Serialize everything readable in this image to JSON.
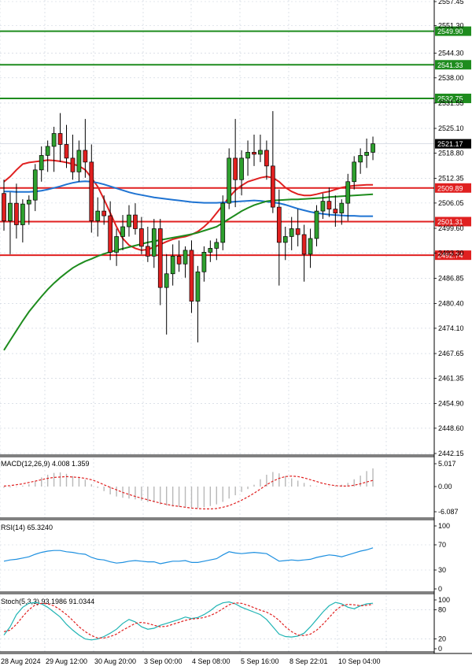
{
  "chart_data": {
    "type": "candlestick",
    "price_axis": {
      "ticks": [
        "2557.45",
        "2551.30",
        "2544.30",
        "2538.00",
        "2531.55",
        "2525.10",
        "2518.80",
        "2512.35",
        "2506.05",
        "2499.60",
        "2493.30",
        "2486.85",
        "2480.40",
        "2474.10",
        "2467.65",
        "2461.35",
        "2454.90",
        "2448.60",
        "2442.15"
      ],
      "range": [
        2442.15,
        2557.45
      ]
    },
    "time_axis": {
      "ticks": [
        "28 Aug 2024",
        "29 Aug 12:00",
        "30 Aug 20:00",
        "3 Sep 00:00",
        "4 Sep 08:00",
        "5 Sep 16:00",
        "8 Sep 22:01",
        "10 Sep 04:00"
      ]
    },
    "levels": [
      {
        "label": "2549.90",
        "value": 2549.9,
        "color": "#1e8c1e",
        "kind": "resistance"
      },
      {
        "label": "2541.33",
        "value": 2541.33,
        "color": "#1e8c1e",
        "kind": "resistance"
      },
      {
        "label": "2532.75",
        "value": 2532.75,
        "color": "#1e8c1e",
        "kind": "resistance"
      },
      {
        "label": "2509.89",
        "value": 2509.89,
        "color": "#e02020",
        "kind": "support"
      },
      {
        "label": "2501.31",
        "value": 2501.31,
        "color": "#e02020",
        "kind": "support"
      },
      {
        "label": "2492.74",
        "value": 2492.74,
        "color": "#e02020",
        "kind": "support"
      }
    ],
    "current_price": {
      "label": "2521.17",
      "value": 2521.17
    },
    "candles": [
      [
        2508.5,
        2512.0,
        2499.0,
        2501.5
      ],
      [
        2501.5,
        2508.8,
        2493.0,
        2506.0
      ],
      [
        2506.0,
        2511.0,
        2497.0,
        2500.5
      ],
      [
        2500.5,
        2507.0,
        2496.0,
        2505.8
      ],
      [
        2505.8,
        2508.0,
        2500.5,
        2506.8
      ],
      [
        2506.8,
        2516.0,
        2504.0,
        2514.5
      ],
      [
        2514.5,
        2520.5,
        2511.5,
        2518.2
      ],
      [
        2518.2,
        2522.0,
        2514.0,
        2520.5
      ],
      [
        2520.5,
        2525.5,
        2514.0,
        2523.8
      ],
      [
        2523.8,
        2529.0,
        2516.5,
        2521.0
      ],
      [
        2521.0,
        2526.0,
        2515.0,
        2517.5
      ],
      [
        2517.5,
        2523.5,
        2512.0,
        2514.0
      ],
      [
        2514.0,
        2522.0,
        2511.5,
        2519.5
      ],
      [
        2519.5,
        2527.5,
        2512.5,
        2516.5
      ],
      [
        2516.5,
        2521.0,
        2498.5,
        2501.5
      ],
      [
        2501.5,
        2507.5,
        2497.5,
        2504.0
      ],
      [
        2504.0,
        2508.0,
        2500.5,
        2502.8
      ],
      [
        2502.8,
        2506.5,
        2491.5,
        2493.5
      ],
      [
        2493.5,
        2499.5,
        2490.0,
        2497.5
      ],
      [
        2497.5,
        2503.0,
        2494.0,
        2500.0
      ],
      [
        2500.0,
        2505.5,
        2497.5,
        2503.0
      ],
      [
        2503.0,
        2506.0,
        2498.0,
        2499.5
      ],
      [
        2499.5,
        2502.5,
        2493.0,
        2495.0
      ],
      [
        2495.0,
        2500.0,
        2491.0,
        2492.5
      ],
      [
        2492.5,
        2502.0,
        2489.5,
        2499.5
      ],
      [
        2499.5,
        2502.0,
        2480.0,
        2484.5
      ],
      [
        2484.5,
        2493.0,
        2472.5,
        2488.0
      ],
      [
        2488.0,
        2495.5,
        2485.0,
        2492.5
      ],
      [
        2492.5,
        2496.5,
        2488.5,
        2490.5
      ],
      [
        2490.5,
        2495.0,
        2487.0,
        2494.0
      ],
      [
        2494.0,
        2496.5,
        2478.0,
        2481.0
      ],
      [
        2481.0,
        2490.0,
        2470.5,
        2488.5
      ],
      [
        2488.5,
        2495.0,
        2486.0,
        2493.5
      ],
      [
        2493.5,
        2496.5,
        2491.0,
        2494.5
      ],
      [
        2494.5,
        2497.0,
        2491.5,
        2496.0
      ],
      [
        2496.0,
        2508.0,
        2494.0,
        2506.0
      ],
      [
        2506.0,
        2520.0,
        2504.5,
        2517.5
      ],
      [
        2517.5,
        2527.5,
        2505.0,
        2512.0
      ],
      [
        2512.0,
        2519.5,
        2508.0,
        2517.5
      ],
      [
        2517.5,
        2522.0,
        2513.0,
        2519.0
      ],
      [
        2519.0,
        2523.5,
        2515.5,
        2518.5
      ],
      [
        2518.5,
        2523.5,
        2516.5,
        2519.5
      ],
      [
        2519.5,
        2522.0,
        2512.0,
        2515.5
      ],
      [
        2515.5,
        2529.5,
        2503.5,
        2505.0
      ],
      [
        2505.0,
        2509.5,
        2485.0,
        2496.0
      ],
      [
        2496.0,
        2500.0,
        2491.5,
        2497.5
      ],
      [
        2497.5,
        2502.5,
        2494.0,
        2499.5
      ],
      [
        2499.5,
        2504.5,
        2495.0,
        2498.0
      ],
      [
        2498.0,
        2500.5,
        2486.0,
        2493.0
      ],
      [
        2493.0,
        2499.5,
        2489.5,
        2497.0
      ],
      [
        2497.0,
        2505.5,
        2495.0,
        2504.0
      ],
      [
        2504.0,
        2508.5,
        2502.0,
        2506.5
      ],
      [
        2506.5,
        2510.0,
        2502.5,
        2504.5
      ],
      [
        2504.5,
        2508.0,
        2500.0,
        2503.5
      ],
      [
        2503.5,
        2507.0,
        2500.5,
        2506.0
      ],
      [
        2506.0,
        2513.5,
        2501.5,
        2511.5
      ],
      [
        2511.5,
        2518.0,
        2509.5,
        2516.5
      ],
      [
        2516.5,
        2520.0,
        2513.5,
        2518.2
      ],
      [
        2518.2,
        2522.5,
        2515.0,
        2519.0
      ],
      [
        2519.0,
        2523.0,
        2517.0,
        2521.17
      ]
    ],
    "moving_averages": [
      {
        "color": "#e02020",
        "values": [
          2511.5,
          2512.8,
          2514.5,
          2516.0,
          2516.4,
          2516.6,
          2516.8,
          2517.0,
          2516.9,
          2516.7,
          2516.4,
          2516.0,
          2515.5,
          2514.5,
          2512.5,
          2510.2,
          2507.0,
          2503.5,
          2500.0,
          2497.0,
          2495.3,
          2494.5,
          2494.0,
          2494.2,
          2494.8,
          2495.5,
          2496.2,
          2496.8,
          2497.2,
          2497.5,
          2498.0,
          2498.8,
          2500.0,
          2501.5,
          2503.5,
          2505.5,
          2507.5,
          2509.3,
          2510.5,
          2511.5,
          2512.0,
          2512.5,
          2512.8,
          2512.5,
          2511.5,
          2510.0,
          2509.0,
          2508.3,
          2508.0,
          2508.0,
          2508.3,
          2508.7,
          2509.0,
          2509.5,
          2510.0,
          2510.3,
          2510.5,
          2510.6,
          2510.7,
          2510.7
        ]
      },
      {
        "color": "#1e73d2",
        "values": [
          2509.0,
          2509.0,
          2508.9,
          2508.9,
          2508.9,
          2509.0,
          2509.2,
          2509.5,
          2509.9,
          2510.3,
          2510.8,
          2511.2,
          2511.5,
          2511.6,
          2511.5,
          2511.2,
          2510.8,
          2510.3,
          2509.8,
          2509.3,
          2508.8,
          2508.4,
          2508.1,
          2507.8,
          2507.5,
          2507.3,
          2507.1,
          2506.9,
          2506.7,
          2506.5,
          2506.3,
          2506.2,
          2506.1,
          2506.1,
          2506.1,
          2506.2,
          2506.3,
          2506.4,
          2506.5,
          2506.6,
          2506.7,
          2506.6,
          2506.4,
          2506.2,
          2506.0,
          2505.6,
          2505.1,
          2504.6,
          2504.2,
          2503.8,
          2503.5,
          2503.3,
          2503.1,
          2503.0,
          2502.9,
          2502.8,
          2502.8,
          2502.7,
          2502.7,
          2502.7
        ]
      },
      {
        "color": "#1e8c1e",
        "values": [
          2468.5,
          2471.0,
          2473.5,
          2476.0,
          2478.3,
          2480.3,
          2482.2,
          2484.0,
          2485.6,
          2487.0,
          2488.3,
          2489.5,
          2490.4,
          2491.2,
          2491.8,
          2492.5,
          2493.1,
          2493.6,
          2494.0,
          2494.4,
          2494.8,
          2495.2,
          2495.6,
          2496.0,
          2496.3,
          2496.6,
          2496.9,
          2497.2,
          2497.5,
          2497.8,
          2498.1,
          2498.5,
          2499.0,
          2499.5,
          2500.0,
          2501.0,
          2502.0,
          2503.0,
          2504.0,
          2504.8,
          2505.5,
          2506.0,
          2506.5,
          2506.7,
          2506.8,
          2506.9,
          2507.0,
          2507.0,
          2507.1,
          2507.2,
          2507.3,
          2507.4,
          2507.6,
          2507.7,
          2507.8,
          2507.9,
          2508.0,
          2508.1,
          2508.2,
          2508.3
        ]
      }
    ],
    "macd": {
      "label": "MACD(12,26,9) 4.008 1.359",
      "ticks": [
        "5.017",
        "0.00",
        "-6.087"
      ],
      "range": [
        -6.087,
        5.017
      ],
      "histogram": [
        -0.3,
        -0.2,
        -0.1,
        0.2,
        0.5,
        1.2,
        2.0,
        2.6,
        3.0,
        3.1,
        2.8,
        2.3,
        1.9,
        1.5,
        0.5,
        -0.3,
        -1.1,
        -1.9,
        -2.4,
        -2.7,
        -2.9,
        -3.1,
        -3.4,
        -3.7,
        -3.8,
        -4.3,
        -4.6,
        -4.8,
        -4.9,
        -4.9,
        -5.1,
        -5.2,
        -5.0,
        -4.7,
        -4.3,
        -3.7,
        -2.9,
        -2.1,
        -1.3,
        -0.6,
        0.4,
        1.6,
        2.6,
        3.2,
        2.9,
        2.3,
        1.8,
        1.3,
        0.8,
        0.3,
        0.1,
        0.0,
        -0.1,
        0.2,
        0.4,
        0.8,
        1.6,
        2.4,
        3.4,
        4.0
      ],
      "signal": [
        0.1,
        0.2,
        0.4,
        0.6,
        0.9,
        1.2,
        1.5,
        1.8,
        2.0,
        2.1,
        2.2,
        2.1,
        2.0,
        1.8,
        1.5,
        1.0,
        0.4,
        -0.2,
        -0.8,
        -1.4,
        -1.9,
        -2.4,
        -2.8,
        -3.2,
        -3.6,
        -4.0,
        -4.3,
        -4.6,
        -4.8,
        -5.0,
        -5.2,
        -5.3,
        -5.4,
        -5.4,
        -5.3,
        -5.0,
        -4.6,
        -4.0,
        -3.3,
        -2.5,
        -1.6,
        -0.6,
        0.4,
        1.2,
        1.8,
        2.2,
        2.3,
        2.2,
        1.9,
        1.5,
        1.1,
        0.7,
        0.4,
        0.2,
        0.1,
        0.1,
        0.3,
        0.6,
        1.0,
        1.359
      ]
    },
    "rsi": {
      "label": "RSI(14) 65.3240",
      "ticks": [
        "100",
        "70",
        "30",
        "0"
      ],
      "range": [
        0,
        100
      ],
      "values": [
        44,
        46,
        47,
        49,
        51,
        55,
        58,
        60,
        61,
        61,
        59,
        58,
        56,
        55,
        50,
        47,
        46,
        43,
        41,
        42,
        44,
        45,
        44,
        43,
        43,
        40,
        42,
        44,
        44,
        45,
        42,
        42,
        44,
        46,
        48,
        54,
        59,
        57,
        56,
        57,
        58,
        57,
        56,
        50,
        44,
        45,
        46,
        45,
        46,
        47,
        50,
        52,
        54,
        53,
        51,
        54,
        57,
        60,
        62,
        65.3
      ]
    },
    "stoch": {
      "label": "Stoch(5,3,3) 93.1986 91.0344",
      "ticks": [
        "100",
        "80",
        "20",
        "0"
      ],
      "range": [
        0,
        100
      ],
      "k": [
        28,
        45,
        70,
        85,
        93,
        95,
        92,
        85,
        75,
        65,
        50,
        38,
        28,
        20,
        18,
        20,
        25,
        32,
        40,
        52,
        60,
        55,
        45,
        40,
        42,
        48,
        52,
        56,
        60,
        65,
        62,
        64,
        70,
        78,
        88,
        94,
        96,
        92,
        85,
        80,
        75,
        70,
        60,
        45,
        30,
        25,
        24,
        26,
        32,
        45,
        60,
        75,
        88,
        95,
        92,
        85,
        82,
        88,
        92,
        93.2
      ],
      "d": [
        35,
        38,
        50,
        66,
        80,
        90,
        93,
        92,
        88,
        80,
        70,
        58,
        45,
        35,
        27,
        22,
        22,
        25,
        30,
        38,
        45,
        52,
        54,
        52,
        48,
        45,
        46,
        50,
        54,
        58,
        61,
        62,
        64,
        68,
        74,
        82,
        90,
        94,
        93,
        89,
        84,
        79,
        75,
        68,
        58,
        45,
        35,
        28,
        27,
        30,
        38,
        50,
        64,
        78,
        88,
        91,
        90,
        88,
        89,
        91.0
      ]
    }
  }
}
